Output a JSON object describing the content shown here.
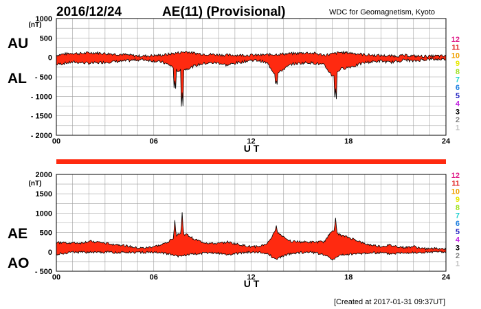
{
  "header": {
    "date": "2016/12/24",
    "title": "AE(11) (Provisional)",
    "source": "WDC for Geomagnetism, Kyoto"
  },
  "footer": {
    "created": "[Created at 2017-01-31 09:37UT]"
  },
  "legend": {
    "entries": [
      {
        "label": "12",
        "color": "#e0208a"
      },
      {
        "label": "11",
        "color": "#e02020"
      },
      {
        "label": "10",
        "color": "#f0a000"
      },
      {
        "label": "9",
        "color": "#e8e800"
      },
      {
        "label": "8",
        "color": "#a0e020"
      },
      {
        "label": "7",
        "color": "#20d0d0"
      },
      {
        "label": "6",
        "color": "#2080e0"
      },
      {
        "label": "5",
        "color": "#2020c0"
      },
      {
        "label": "4",
        "color": "#c020e0"
      },
      {
        "label": "3",
        "color": "#000000"
      },
      {
        "label": "2",
        "color": "#808080"
      },
      {
        "label": "1",
        "color": "#c0c0c0"
      }
    ]
  },
  "colors": {
    "fill": "#ff2a10",
    "line": "#000000",
    "grid": "#a0a0a0",
    "coverage_bar": "#ff2a10"
  },
  "chart_data": [
    {
      "type": "area",
      "panel": "top",
      "series_labels": [
        "AU",
        "AL"
      ],
      "unit_label": "(nT)",
      "ylim": [
        -2000,
        1000
      ],
      "yticks": [
        1000,
        500,
        0,
        -500,
        -1000,
        -1500,
        -2000
      ],
      "ytick_labels": [
        "1000",
        "500",
        "0",
        "- 500",
        "- 1000",
        "- 1500",
        "- 2000"
      ],
      "xlim": [
        0,
        24
      ],
      "xticks": [
        0,
        6,
        12,
        18,
        24
      ],
      "xtick_labels": [
        "00",
        "06",
        "12",
        "18",
        "24"
      ],
      "xlabel": "U T",
      "x": [
        0,
        0.5,
        1,
        1.5,
        2,
        2.5,
        3,
        3.5,
        4,
        4.5,
        5,
        5.5,
        6,
        6.5,
        7,
        7.5,
        8,
        8.5,
        9,
        9.5,
        10,
        10.5,
        11,
        11.5,
        12,
        12.5,
        13,
        13.5,
        14,
        14.5,
        15,
        15.5,
        16,
        16.5,
        17,
        17.5,
        18,
        18.5,
        19,
        19.5,
        20,
        20.5,
        21,
        21.5,
        22,
        22.5,
        23,
        23.5,
        24
      ],
      "upper": [
        60,
        90,
        110,
        100,
        120,
        120,
        100,
        90,
        80,
        60,
        40,
        40,
        50,
        60,
        90,
        120,
        150,
        110,
        90,
        80,
        70,
        60,
        60,
        60,
        60,
        60,
        70,
        80,
        90,
        100,
        110,
        120,
        100,
        60,
        90,
        130,
        120,
        100,
        70,
        60,
        50,
        40,
        40,
        50,
        40,
        30,
        30,
        40,
        30
      ],
      "lower": [
        -180,
        -150,
        -120,
        -130,
        -150,
        -140,
        -120,
        -110,
        -100,
        -80,
        -60,
        -60,
        -90,
        -120,
        -200,
        -350,
        -300,
        -220,
        -160,
        -140,
        -140,
        -200,
        -150,
        -110,
        -70,
        -80,
        -150,
        -450,
        -300,
        -170,
        -150,
        -130,
        -150,
        -200,
        -480,
        -300,
        -250,
        -200,
        -130,
        -110,
        -90,
        -130,
        -100,
        -60,
        -100,
        -60,
        -50,
        -50,
        -40
      ],
      "spikes": [
        {
          "x": 7.3,
          "y": -600
        },
        {
          "x": 7.75,
          "y": -900
        },
        {
          "x": 13.55,
          "y": -600
        },
        {
          "x": 17.2,
          "y": -800
        }
      ]
    },
    {
      "type": "area",
      "panel": "bottom",
      "series_labels": [
        "AE",
        "AO"
      ],
      "unit_label": "(nT)",
      "ylim": [
        -500,
        2000
      ],
      "yticks": [
        2000,
        1500,
        1000,
        500,
        0,
        -500
      ],
      "ytick_labels": [
        "2000",
        "1500",
        "1000",
        "500",
        "0",
        "- 500"
      ],
      "xlim": [
        0,
        24
      ],
      "xticks": [
        0,
        6,
        12,
        18,
        24
      ],
      "xtick_labels": [
        "00",
        "06",
        "12",
        "18",
        "24"
      ],
      "xlabel": "U T",
      "x": [
        0,
        0.5,
        1,
        1.5,
        2,
        2.5,
        3,
        3.5,
        4,
        4.5,
        5,
        5.5,
        6,
        6.5,
        7,
        7.5,
        8,
        8.5,
        9,
        9.5,
        10,
        10.5,
        11,
        11.5,
        12,
        12.5,
        13,
        13.5,
        14,
        14.5,
        15,
        15.5,
        16,
        16.5,
        17,
        17.5,
        18,
        18.5,
        19,
        19.5,
        20,
        20.5,
        21,
        21.5,
        22,
        22.5,
        23,
        23.5,
        24
      ],
      "upper": [
        240,
        240,
        230,
        230,
        270,
        260,
        220,
        200,
        180,
        140,
        100,
        100,
        140,
        180,
        290,
        470,
        450,
        330,
        250,
        220,
        210,
        260,
        210,
        170,
        130,
        140,
        220,
        530,
        390,
        270,
        260,
        250,
        250,
        260,
        570,
        430,
        370,
        300,
        200,
        170,
        140,
        170,
        140,
        110,
        140,
        90,
        80,
        90,
        70
      ],
      "lower": [
        -60,
        -30,
        -5,
        -15,
        -15,
        -10,
        -10,
        -10,
        -10,
        -10,
        -10,
        -10,
        -20,
        -30,
        -55,
        -115,
        -75,
        -55,
        -35,
        -30,
        -35,
        -70,
        -45,
        -25,
        -5,
        -10,
        -40,
        -185,
        -105,
        -35,
        -20,
        -5,
        -25,
        -70,
        -195,
        -85,
        -65,
        -50,
        -30,
        -25,
        -20,
        -45,
        -30,
        -5,
        -30,
        -15,
        -10,
        -5,
        -5
      ],
      "spikes": [
        {
          "x": 7.3,
          "y": 820
        },
        {
          "x": 7.75,
          "y": 1020
        },
        {
          "x": 13.55,
          "y": 680
        },
        {
          "x": 17.2,
          "y": 880
        }
      ]
    }
  ]
}
